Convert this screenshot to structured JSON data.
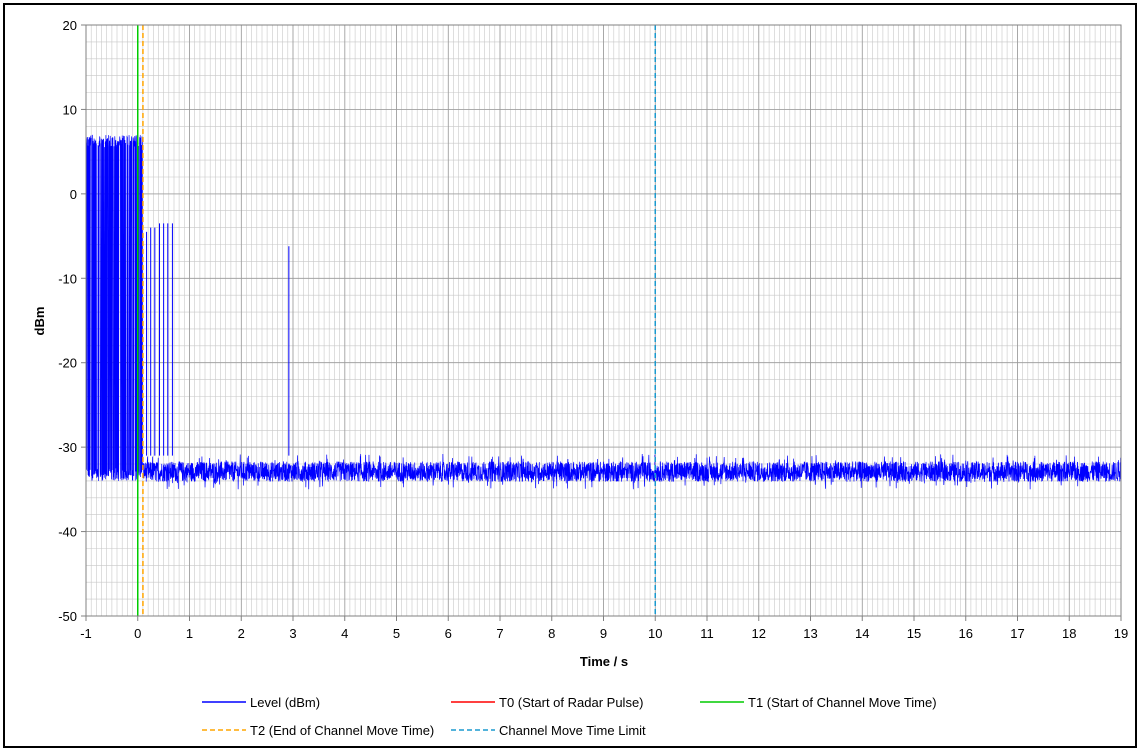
{
  "chart_data": {
    "type": "line",
    "xlabel": "Time / s",
    "ylabel": "dBm",
    "xlim": [
      -1,
      19
    ],
    "ylim": [
      -50,
      20
    ],
    "x_ticks": [
      "-1",
      "0",
      "1",
      "2",
      "3",
      "4",
      "5",
      "6",
      "7",
      "8",
      "9",
      "10",
      "11",
      "12",
      "13",
      "14",
      "15",
      "16",
      "17",
      "18",
      "19"
    ],
    "y_ticks": [
      "20",
      "10",
      "0",
      "-10",
      "-20",
      "-30",
      "-40",
      "-50"
    ],
    "grid": true,
    "grid_minor_x_step": 0.1,
    "grid_minor_y_step": 2,
    "legend_position": "bottom",
    "series": [
      {
        "name": "Level (dBm)",
        "color": "#0000ff",
        "style": "solid",
        "noise_floor_band": [
          -34,
          -31
        ],
        "burst_region": {
          "x": [
            -1,
            0.1
          ],
          "y_range": [
            -34,
            7
          ]
        },
        "spikes": [
          {
            "x": 0.08,
            "y": -5
          },
          {
            "x": 0.17,
            "y": -4.5
          },
          {
            "x": 0.25,
            "y": -4
          },
          {
            "x": 0.33,
            "y": -4
          },
          {
            "x": 0.42,
            "y": -3.5
          },
          {
            "x": 0.5,
            "y": -3.5
          },
          {
            "x": 0.58,
            "y": -3.5
          },
          {
            "x": 0.67,
            "y": -3.5
          },
          {
            "x": 2.92,
            "y": -6.2
          }
        ]
      },
      {
        "name": "T0 (Start of Radar Pulse)",
        "color": "#ff0000",
        "style": "solid",
        "x": 0
      },
      {
        "name": "T1 (Start of Channel Move Time)",
        "color": "#00cc00",
        "style": "solid",
        "x": 0
      },
      {
        "name": "T2 (End of Channel Move Time)",
        "color": "#ffa500",
        "style": "dashed",
        "x": 0.1
      },
      {
        "name": "Channel Move Time Limit",
        "color": "#1a9acf",
        "style": "dashed",
        "x": 10
      }
    ]
  }
}
